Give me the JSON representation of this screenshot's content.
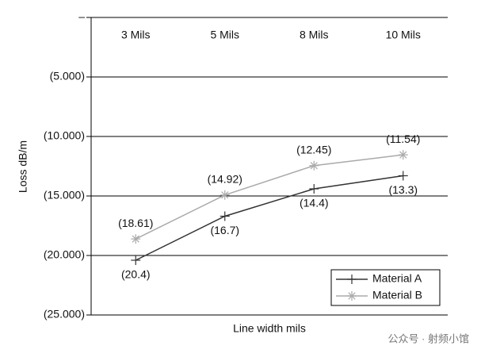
{
  "chart_data": {
    "type": "line",
    "y_label": "Loss dB/m",
    "x_label": "Line width mils",
    "categories": [
      "3 Mils",
      "5 Mils",
      "8 Mils",
      "10 Mils"
    ],
    "series": [
      {
        "name": "Material A",
        "color": "#333333",
        "marker": "plus",
        "label_position": "below",
        "values": [
          -20.4,
          -16.7,
          -14.4,
          -13.3
        ],
        "value_labels": [
          "(20.4)",
          "(16.7)",
          "(14.4)",
          "(13.3)"
        ]
      },
      {
        "name": "Material B",
        "color": "#aaaaaa",
        "marker": "asterisk",
        "label_position": "above",
        "values": [
          -18.61,
          -14.92,
          -12.45,
          -11.54
        ],
        "value_labels": [
          "(18.61)",
          "(14.92)",
          "(12.45)",
          "(11.54)"
        ]
      }
    ],
    "ylim": [
      -25,
      0
    ],
    "yticks": [
      {
        "value": -25,
        "label": "(25.000)"
      },
      {
        "value": -20,
        "label": "(20.000)"
      },
      {
        "value": -15,
        "label": "(15.000)"
      },
      {
        "value": -10,
        "label": "(10.000)"
      },
      {
        "value": -5,
        "label": "(5.000)"
      },
      {
        "value": 0,
        "label": "–"
      }
    ],
    "grid": true,
    "category_axis_position": "top",
    "legend_position": "lower right",
    "watermark": "公众号 · 射频小馆"
  }
}
